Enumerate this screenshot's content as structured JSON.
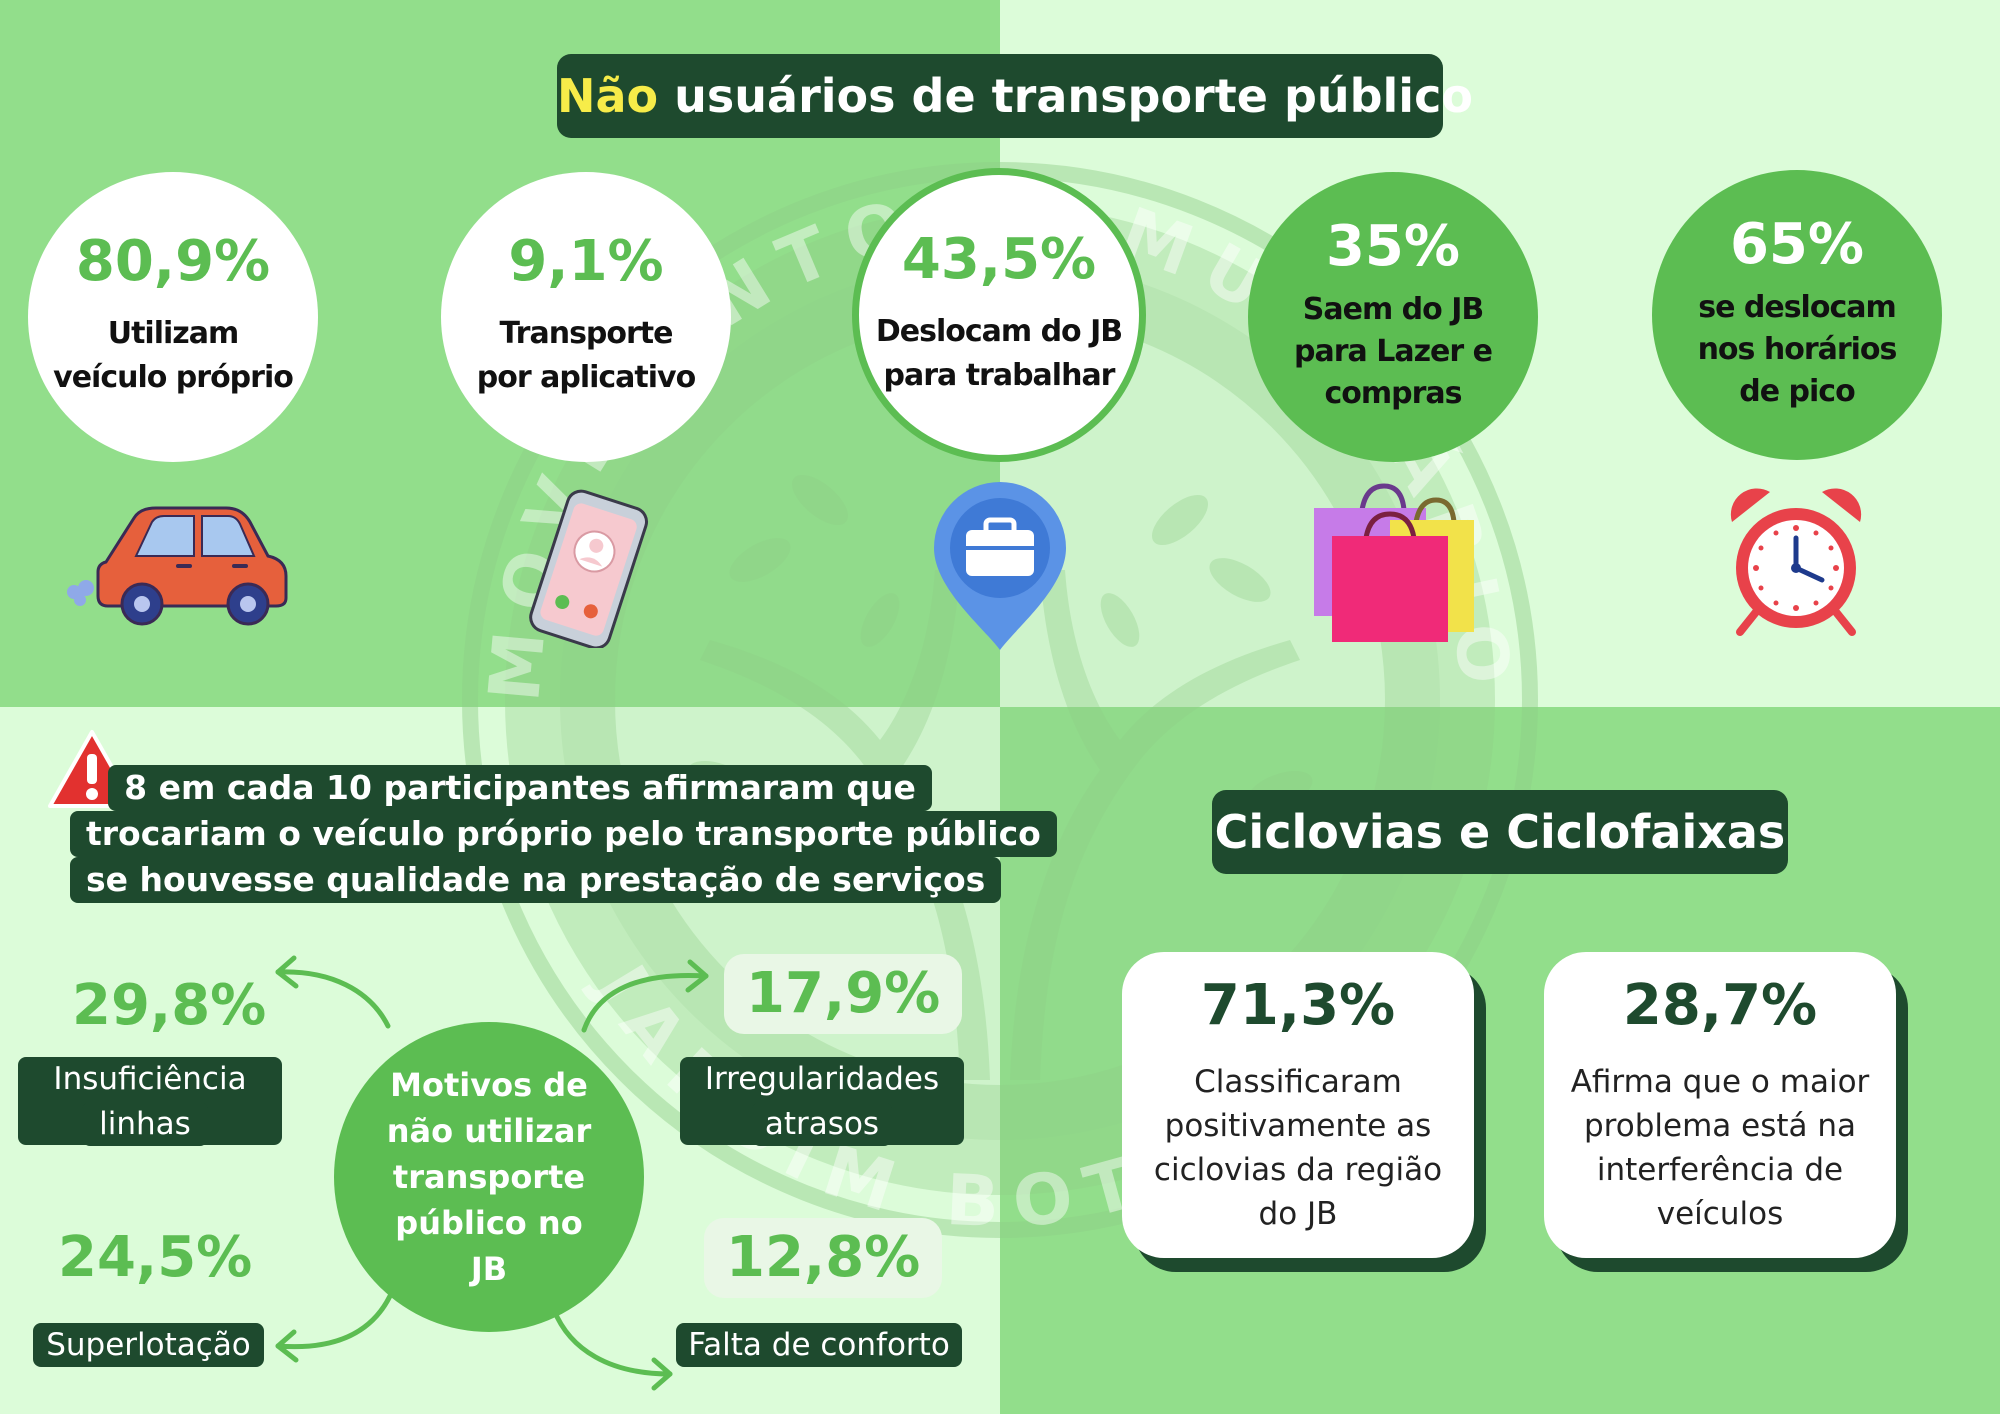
{
  "header": {
    "title_highlight": "Não",
    "title_rest": " usuários de transporte público"
  },
  "stats": [
    {
      "value": "80,9%",
      "line1": "Utilizam",
      "line2": "veículo próprio",
      "icon": "car-icon"
    },
    {
      "value": "9,1%",
      "line1": "Transporte",
      "line2": "por aplicativo",
      "icon": "smartphone-icon"
    },
    {
      "value": "43,5%",
      "line1": "Deslocam do JB",
      "line2": "para trabalhar",
      "icon": "briefcase-pin-icon"
    },
    {
      "value": "35%",
      "line1": "Saem do JB",
      "line2": "para Lazer e",
      "line3": "compras",
      "icon": "shopping-bags-icon"
    },
    {
      "value": "65%",
      "line1": "se deslocam",
      "line2": "nos horários",
      "line3": "de pico",
      "icon": "alarm-clock-icon"
    }
  ],
  "warning": {
    "icon": "warning-icon",
    "lines": [
      "8 em cada 10 participantes afirmaram que",
      "trocariam o veículo próprio pelo transporte público",
      "se houvesse qualidade na prestação de serviços"
    ]
  },
  "motivos": {
    "center": "Motivos de não utilizar transporte público no JB",
    "items": [
      {
        "value": "29,8%",
        "line1": "Insuficiência de",
        "line2": "linhas"
      },
      {
        "value": "17,9%",
        "line1": "Irregularidades e",
        "line2": "atrasos"
      },
      {
        "value": "24,5%",
        "line1": "Superlotação"
      },
      {
        "value": "12,8%",
        "line1": "Falta de conforto"
      }
    ]
  },
  "ciclovias": {
    "title": "Ciclovias e Ciclofaixas",
    "cards": [
      {
        "value": "71,3%",
        "line1": "Classificaram",
        "line2": "positivamente as",
        "line3": "ciclovias da região",
        "line4": "do JB"
      },
      {
        "value": "28,7%",
        "line1": "Afirma que o maior",
        "line2": "problema está na",
        "line3": "interferência de",
        "line4": "veículos"
      }
    ]
  },
  "watermark": {
    "top_text": "MOVIMENTO COMUNITÁRIO",
    "bottom_text": "JARDIM BOTÂNICO"
  },
  "colors": {
    "dark_green": "#1e4a2e",
    "accent_green": "#5cbd52",
    "light_green": "#92de8b",
    "pale_green": "#dcfcd9",
    "highlight_yellow": "#f7ec49"
  }
}
